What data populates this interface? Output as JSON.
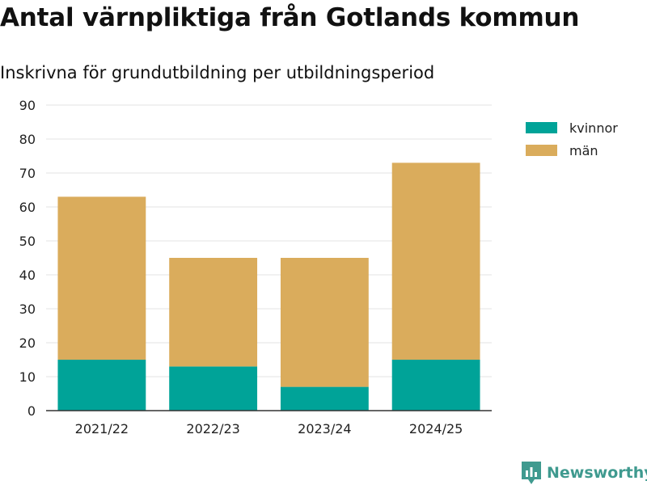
{
  "chart_data": {
    "type": "bar",
    "stacked": true,
    "title": "Antal värnpliktiga från Gotlands kommun",
    "subtitle": "Inskrivna för grundutbildning per utbildningsperiod",
    "categories": [
      "2021/22",
      "2022/23",
      "2023/24",
      "2024/25"
    ],
    "series": [
      {
        "name": "kvinnor",
        "color": "#00a398",
        "values": [
          15,
          13,
          7,
          15
        ]
      },
      {
        "name": "män",
        "color": "#daac5c",
        "values": [
          48,
          32,
          38,
          58
        ]
      }
    ],
    "ylim": [
      0,
      90
    ],
    "yticks": [
      0,
      10,
      20,
      30,
      40,
      50,
      60,
      70,
      80,
      90
    ],
    "xlabel": "",
    "ylabel": "",
    "grid": true,
    "legend": "right"
  },
  "brand": {
    "name": "Newsworthy",
    "color": "#3f9a8f",
    "icon": "newsworthy-logo-icon"
  }
}
